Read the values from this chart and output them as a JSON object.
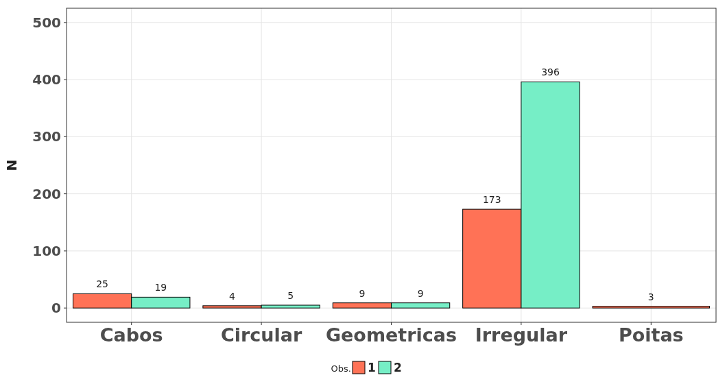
{
  "chart_data": {
    "type": "bar",
    "ylabel": "N",
    "legend_title": "Obs.",
    "categories": [
      "Cabos",
      "Circular",
      "Geometricas",
      "Irregular",
      "Poitas"
    ],
    "series": [
      {
        "name": "1",
        "color": "#ff7256",
        "values": [
          25,
          4,
          9,
          173,
          3
        ]
      },
      {
        "name": "2",
        "color": "#76eec6",
        "values": [
          19,
          5,
          9,
          396,
          null
        ]
      }
    ],
    "ylim": [
      -25,
      525
    ],
    "yticks": [
      0,
      100,
      200,
      300,
      400,
      500
    ],
    "grid": true,
    "legend": "bottom",
    "data_labels": true
  }
}
